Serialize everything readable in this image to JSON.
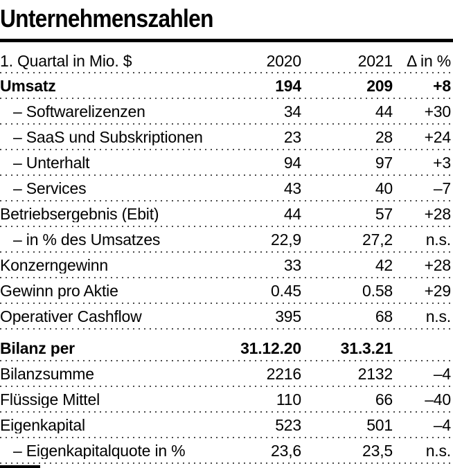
{
  "chart_data": {
    "type": "table",
    "title": "Unternehmenszahlen",
    "header": {
      "label": "1. Quartal in Mio. $",
      "col2020": "2020",
      "col2021": "2021",
      "delta": "Δ in %"
    },
    "rows": [
      {
        "label": "Umsatz",
        "v2020": "194",
        "v2021": "209",
        "delta": "+8"
      },
      {
        "label": "– Softwarelizenzen",
        "v2020": "34",
        "v2021": "44",
        "delta": "+30"
      },
      {
        "label": "– SaaS und Subskriptionen",
        "v2020": "23",
        "v2021": "28",
        "delta": "+24"
      },
      {
        "label": "– Unterhalt",
        "v2020": "94",
        "v2021": "97",
        "delta": "+3"
      },
      {
        "label": "– Services",
        "v2020": "43",
        "v2021": "40",
        "delta": "–7"
      },
      {
        "label": "Betriebsergebnis (Ebit)",
        "v2020": "44",
        "v2021": "57",
        "delta": "+28"
      },
      {
        "label": "– in % des Umsatzes",
        "v2020": "22,9",
        "v2021": "27,2",
        "delta": "n.s."
      },
      {
        "label": "Konzerngewinn",
        "v2020": "33",
        "v2021": "42",
        "delta": "+28"
      },
      {
        "label": "Gewinn pro Aktie",
        "v2020": "0.45",
        "v2021": "0.58",
        "delta": "+29"
      },
      {
        "label": "Operativer Cashflow",
        "v2020": "395",
        "v2021": "68",
        "delta": "n.s."
      },
      {
        "label": "Bilanz per",
        "v2020": "31.12.20",
        "v2021": "31.3.21",
        "delta": ""
      },
      {
        "label": "Bilanzsumme",
        "v2020": "2216",
        "v2021": "2132",
        "delta": "–4"
      },
      {
        "label": "Flüssige Mittel",
        "v2020": "110",
        "v2021": "66",
        "delta": "–40"
      },
      {
        "label": "Eigenkapital",
        "v2020": "523",
        "v2021": "501",
        "delta": "–4"
      },
      {
        "label": "– Eigenkapitalquote in %",
        "v2020": "23,6",
        "v2021": "23,5",
        "delta": "n.s."
      }
    ],
    "colors": {
      "text": "#000000",
      "rule": "#000000",
      "dotted_separator": "#4a4a4a",
      "background": "#ffffff"
    },
    "layout": {
      "columns_right_aligned": true,
      "separator_style": "dotted"
    }
  }
}
